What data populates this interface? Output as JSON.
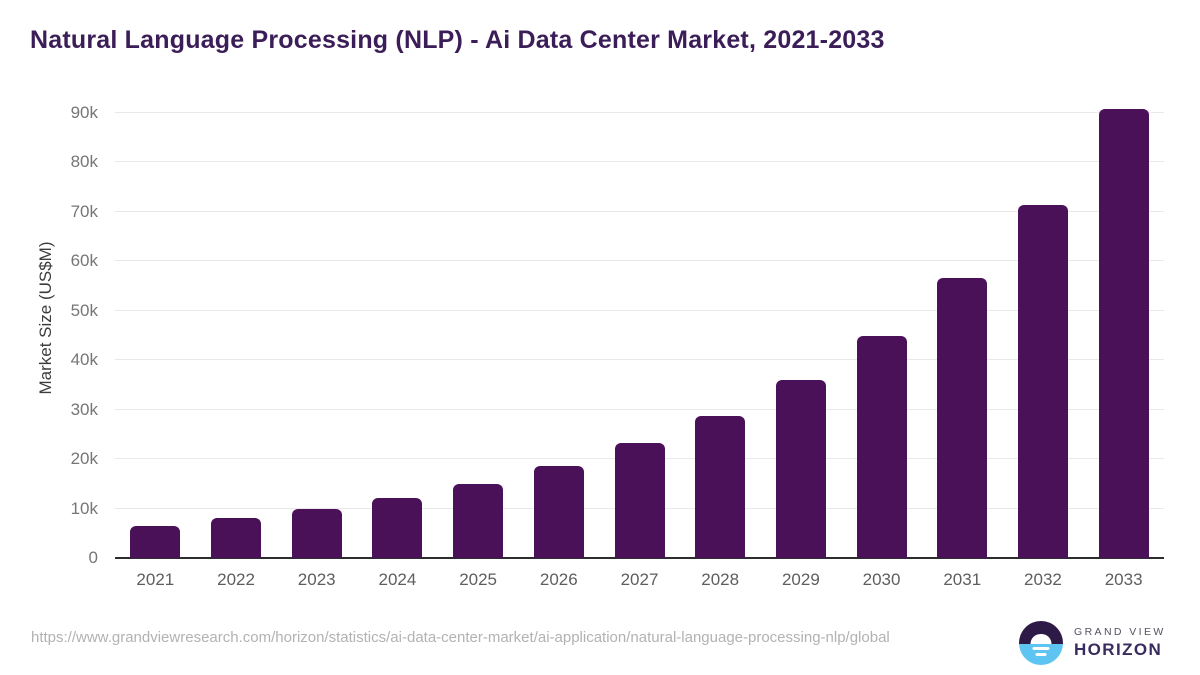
{
  "title": "Natural Language Processing (NLP) - Ai Data Center Market, 2021-2033",
  "source": {
    "url": "https://www.grandviewresearch.com/horizon/statistics/ai-data-center-market/ai-application/natural-language-processing-nlp/global"
  },
  "logo": {
    "line1": "GRAND VIEW",
    "line2": "HORIZON"
  },
  "chart_data": {
    "type": "bar",
    "title": "Natural Language Processing (NLP) - Ai Data Center Market, 2021-2033",
    "categories": [
      "2021",
      "2022",
      "2023",
      "2024",
      "2025",
      "2026",
      "2027",
      "2028",
      "2029",
      "2030",
      "2031",
      "2032",
      "2033"
    ],
    "values": [
      6400,
      8000,
      9900,
      12200,
      15000,
      18600,
      23300,
      28800,
      36000,
      45000,
      56600,
      71400,
      90900
    ],
    "unit": "US$M",
    "xlabel": "",
    "ylabel": "Market Size (US$M)",
    "yticks": [
      0,
      10000,
      20000,
      30000,
      40000,
      50000,
      60000,
      70000,
      80000,
      90000
    ],
    "ytick_labels": [
      "0",
      "10k",
      "20k",
      "30k",
      "40k",
      "50k",
      "60k",
      "70k",
      "80k",
      "90k"
    ],
    "ylim": [
      0,
      90000
    ],
    "grid": "horizontal",
    "legend": "none",
    "bar_color": "#4a1159"
  },
  "colors": {
    "title": "#3b1d57",
    "bar": "#4a1159",
    "gridline": "#e9e9e9",
    "axis_line": "#2d2d2d",
    "y_tick": "#767676",
    "x_tick": "#5e5e5e",
    "y_label": "#3c3c3c",
    "source_text": "#b2b2b2",
    "logo_dark": "#2e1a47",
    "logo_blue": "#5ec5f2",
    "logo_text_small": "#56505f",
    "logo_text_big": "#3a2b5e"
  }
}
